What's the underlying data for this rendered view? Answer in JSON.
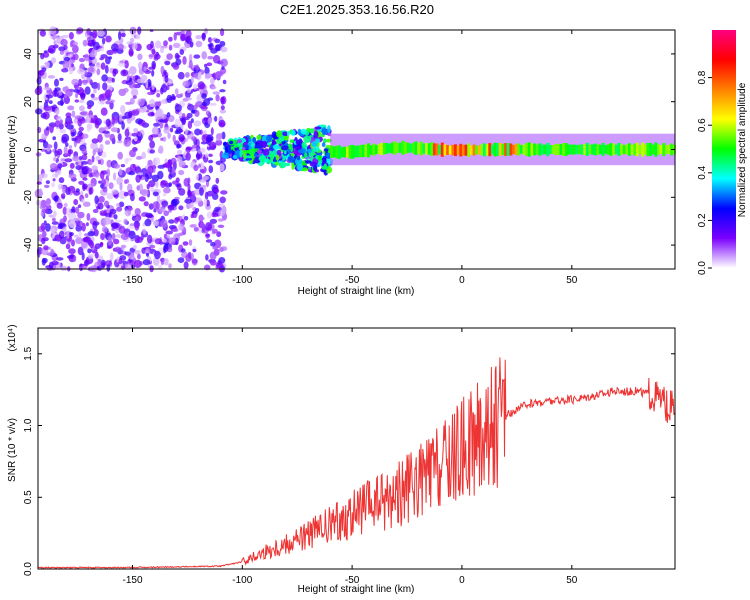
{
  "title": "C2E1.2025.353.16.56.R20",
  "chart_data": [
    {
      "type": "heatmap",
      "title": "C2E1.2025.353.16.56.R20",
      "xlabel": "Height of straight line (km)",
      "ylabel": "Frequency (Hz)",
      "xlim": [
        -193,
        97
      ],
      "ylim": [
        -50,
        50
      ],
      "xticks": [
        -150,
        -100,
        -50,
        0,
        50
      ],
      "yticks": [
        -40,
        -20,
        0,
        20,
        40
      ],
      "colorbar": {
        "label": "Normalized spectral amplitude",
        "range": [
          0,
          1
        ],
        "ticks": [
          "0.0",
          "0.2",
          "0.4",
          "0.6",
          "0.8"
        ],
        "colors": [
          "#ffffff",
          "#7a00ff",
          "#0000ff",
          "#00ffff",
          "#00ff00",
          "#ffff00",
          "#ff8000",
          "#ff0000",
          "#ff0080"
        ]
      },
      "regions": [
        {
          "name": "noise",
          "x": [
            -193,
            -108
          ],
          "freq": [
            -50,
            50
          ],
          "amplitude": 0.1
        },
        {
          "name": "onset",
          "x": [
            -108,
            -60
          ],
          "freq": [
            -10,
            10
          ],
          "amplitude": 0.3
        },
        {
          "name": "signal",
          "x": [
            -60,
            97
          ],
          "freq": [
            -3,
            3
          ],
          "amplitude": 0.45,
          "peak_amplitude": 0.85
        }
      ]
    },
    {
      "type": "line",
      "xlabel": "Height of straight line (km)",
      "ylabel": "SNR (10 * v/v)",
      "y_multiplier": "(x10⁴)",
      "color": "#ee3333",
      "xlim": [
        -193,
        97
      ],
      "ylim": [
        0,
        1.68
      ],
      "xticks": [
        -150,
        -100,
        -50,
        0,
        50
      ],
      "yticks": [
        "0.0",
        "0.5",
        "1.0",
        "1.5"
      ],
      "x": [
        -193,
        -150,
        -110,
        -100,
        -90,
        -80,
        -70,
        -60,
        -50,
        -40,
        -30,
        -20,
        -10,
        0,
        10,
        20,
        30,
        40,
        50,
        60,
        70,
        80,
        85,
        90,
        92,
        94,
        97
      ],
      "y": [
        0.01,
        0.01,
        0.02,
        0.05,
        0.12,
        0.18,
        0.24,
        0.3,
        0.38,
        0.45,
        0.52,
        0.6,
        0.7,
        0.82,
        0.95,
        1.07,
        1.15,
        1.17,
        1.18,
        1.21,
        1.24,
        1.24,
        1.22,
        1.18,
        1.15,
        1.13,
        1.12
      ]
    }
  ]
}
